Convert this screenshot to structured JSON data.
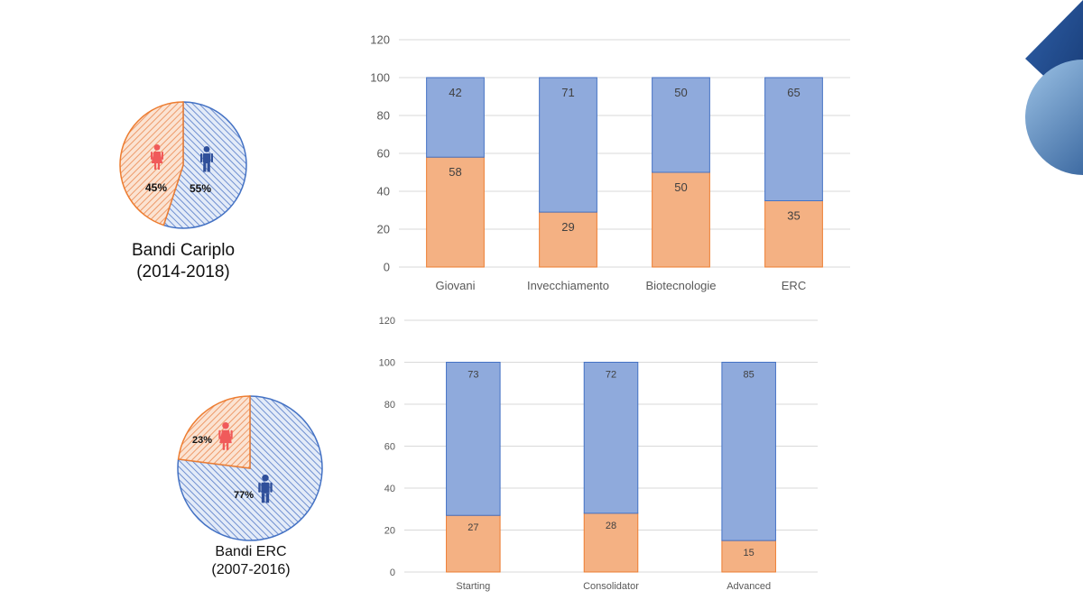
{
  "colors": {
    "female": "#f4b183",
    "male": "#8faadc",
    "female_edge": "#ed7d31",
    "male_edge": "#4472c4",
    "female_icon": "#f05a5a",
    "male_icon": "#2f4f9a",
    "grid": "#d9d9d9",
    "axis_text": "#595959",
    "deco_dark": "#1f4e8c",
    "deco_light": "#9dc3e6"
  },
  "icons": {
    "female": "female-person-icon",
    "male": "male-person-icon",
    "decoration": "blue-diamond-circle-decoration"
  },
  "pies": [
    {
      "caption_line1": "Bandi Cariplo",
      "caption_line2": "(2014-2018)",
      "female_label": "45%",
      "male_label": "55%",
      "female_value": 45,
      "male_value": 55
    },
    {
      "caption_line1": "Bandi ERC",
      "caption_line2": "(2007-2016)",
      "female_label": "23%",
      "male_label": "77%",
      "female_value": 23,
      "male_value": 77
    }
  ],
  "chart_data": [
    {
      "type": "pie",
      "title": "",
      "categories": [
        "female",
        "male"
      ],
      "values": [
        45,
        55
      ]
    },
    {
      "type": "bar",
      "stacked": true,
      "title": "",
      "xlabel": "",
      "ylabel": "",
      "categories": [
        "Giovani",
        "Invecchiamento",
        "Biotecnologie",
        "ERC"
      ],
      "ylim": [
        0,
        120
      ],
      "yticks": [
        0,
        20,
        40,
        60,
        80,
        100,
        120
      ],
      "grid": true,
      "series": [
        {
          "values": [
            58,
            29,
            50,
            35
          ],
          "color": "#f4b183"
        },
        {
          "values": [
            42,
            71,
            50,
            65
          ],
          "color": "#8faadc"
        }
      ]
    },
    {
      "type": "pie",
      "title": "",
      "categories": [
        "female",
        "male"
      ],
      "values": [
        23,
        77
      ]
    },
    {
      "type": "bar",
      "stacked": true,
      "title": "",
      "xlabel": "",
      "ylabel": "",
      "categories": [
        "Starting",
        "Consolidator",
        "Advanced"
      ],
      "ylim": [
        0,
        120
      ],
      "yticks": [
        0,
        20,
        40,
        60,
        80,
        100,
        120
      ],
      "grid": true,
      "series": [
        {
          "values": [
            27,
            28,
            15
          ],
          "color": "#f4b183"
        },
        {
          "values": [
            73,
            72,
            85
          ],
          "color": "#8faadc"
        }
      ]
    }
  ]
}
